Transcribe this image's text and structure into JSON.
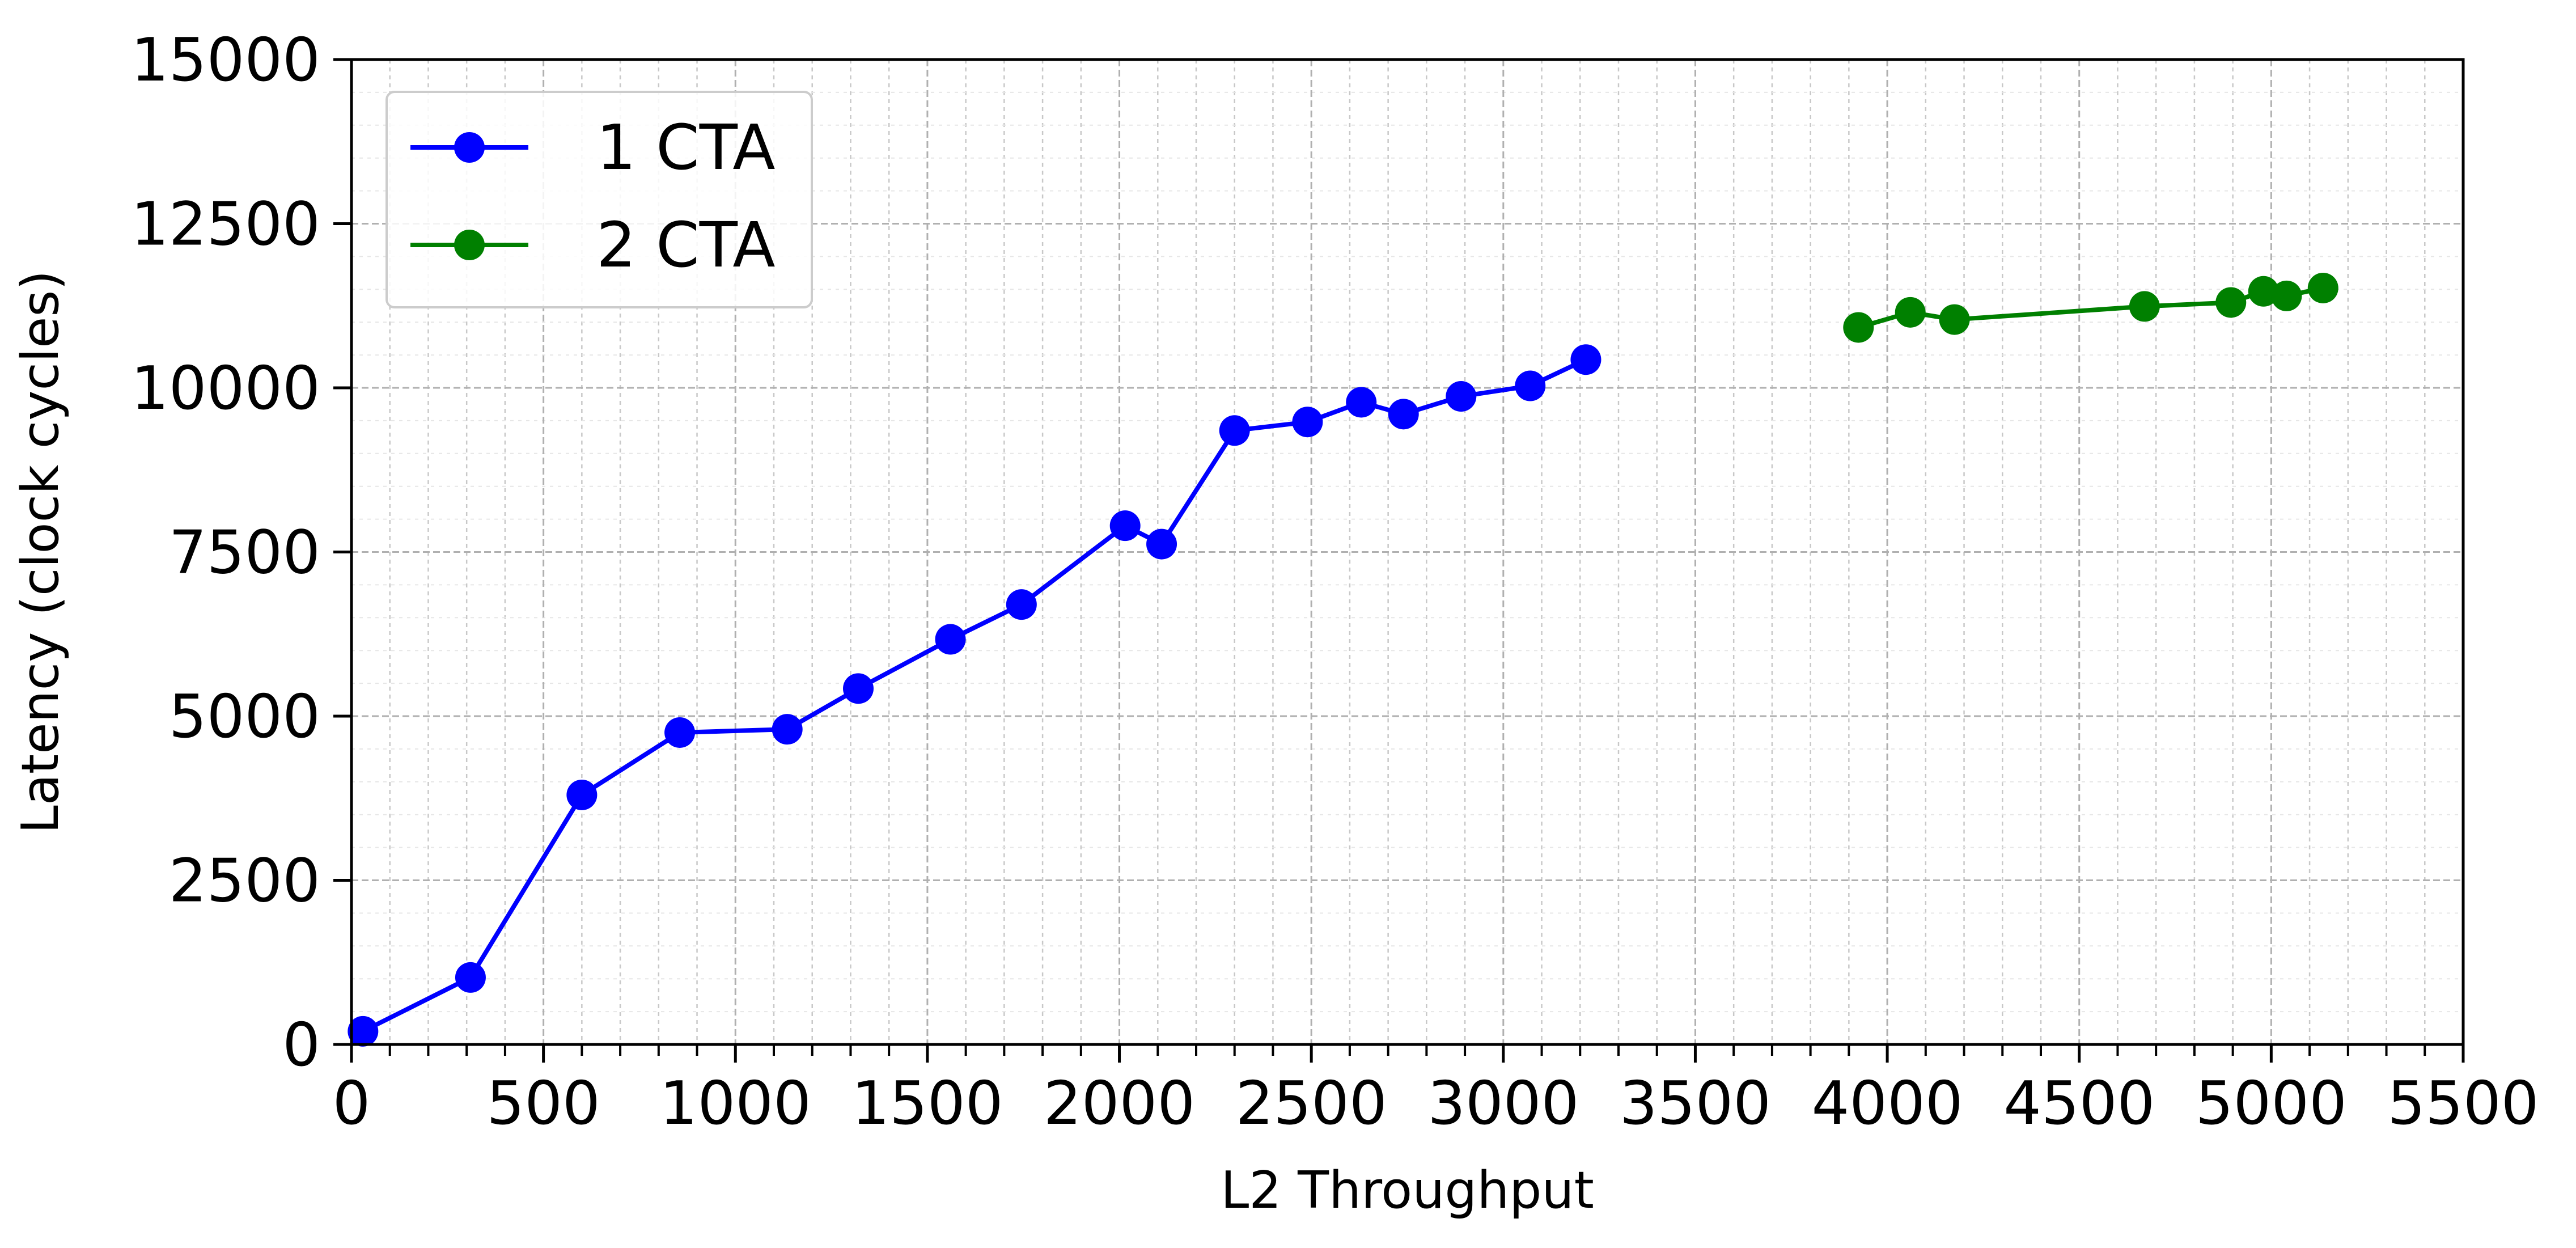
{
  "chart_data": {
    "type": "line",
    "title": "",
    "xlabel": "L2 Throughput",
    "ylabel": "Latency (clock cycles)",
    "xlim": [
      0,
      5500
    ],
    "ylim": [
      0,
      15000
    ],
    "x_ticks": [
      0,
      500,
      1000,
      1500,
      2000,
      2500,
      3000,
      3500,
      4000,
      4500,
      5000,
      5500
    ],
    "y_ticks": [
      0,
      2500,
      5000,
      7500,
      10000,
      12500,
      15000
    ],
    "x_tick_labels": [
      "0",
      "500",
      "1000",
      "1500",
      "2000",
      "2500",
      "3000",
      "3500",
      "4000",
      "4500",
      "5000",
      "5500"
    ],
    "y_tick_labels": [
      "0",
      "2500",
      "5000",
      "7500",
      "10000",
      "12500",
      "15000"
    ],
    "grid": true,
    "minor_grid": true,
    "legend_position": "top-left",
    "series": [
      {
        "name": "1 CTA",
        "color": "#0000ff",
        "marker": "circle",
        "points": [
          [
            30,
            200
          ],
          [
            310,
            1020
          ],
          [
            600,
            3800
          ],
          [
            855,
            4750
          ],
          [
            1135,
            4800
          ],
          [
            1320,
            5420
          ],
          [
            1560,
            6170
          ],
          [
            1745,
            6700
          ],
          [
            2015,
            7900
          ],
          [
            2110,
            7620
          ],
          [
            2300,
            9350
          ],
          [
            2490,
            9480
          ],
          [
            2630,
            9780
          ],
          [
            2740,
            9600
          ],
          [
            2890,
            9870
          ],
          [
            3070,
            10030
          ],
          [
            3215,
            10430
          ]
        ]
      },
      {
        "name": "2 CTA",
        "color": "#008000",
        "marker": "circle",
        "points": [
          [
            3925,
            10920
          ],
          [
            4060,
            11150
          ],
          [
            4175,
            11040
          ],
          [
            4670,
            11240
          ],
          [
            4895,
            11300
          ],
          [
            4980,
            11470
          ],
          [
            5040,
            11400
          ],
          [
            5135,
            11520
          ]
        ]
      }
    ]
  }
}
